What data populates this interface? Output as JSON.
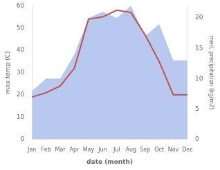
{
  "chart_data": {
    "type": "line",
    "xlabel": "date (month)",
    "ylabel": "max temp (C)",
    "y2label": "med. precipitation (kg/m2)",
    "categories": [
      "Jan",
      "Feb",
      "Mar",
      "Apr",
      "May",
      "Jun",
      "Jul",
      "Aug",
      "Sep",
      "Oct",
      "Nov",
      "Dec"
    ],
    "series": [
      {
        "type": "area",
        "color": "#b8c8ee",
        "axis": "y2",
        "values": [
          8,
          10,
          10,
          14,
          20,
          21,
          20,
          22,
          17,
          19,
          13,
          13
        ]
      },
      {
        "type": "line",
        "color": "#c0504d",
        "values": [
          19,
          21,
          24,
          32,
          54,
          55,
          58,
          57,
          47,
          35,
          20,
          20
        ]
      }
    ],
    "ylim": [
      0,
      60
    ],
    "yticks": [
      0,
      10,
      20,
      30,
      40,
      50,
      60
    ],
    "y2lim": [
      0,
      22
    ],
    "y2ticks": [
      0,
      5,
      10,
      15,
      20
    ],
    "grid": false
  }
}
